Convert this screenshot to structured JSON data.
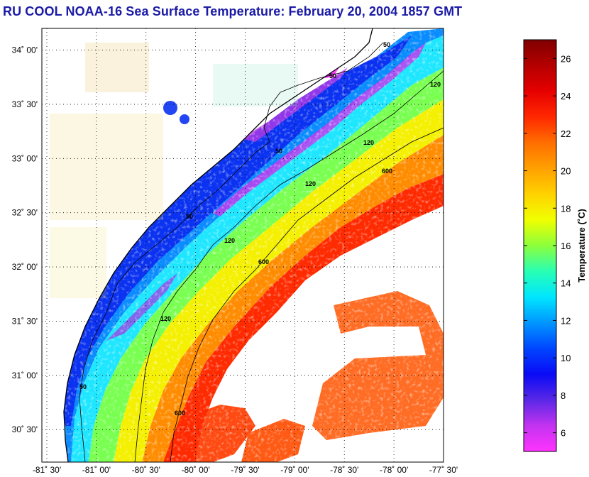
{
  "title": "RU COOL  NOAA-16  Sea Surface Temperature:  February 20, 2004 1857 GMT",
  "map": {
    "lat_range": [
      30.2,
      34.2
    ],
    "lon_range": [
      -81.55,
      -77.5
    ],
    "lat_ticks": [
      {
        "value": 34.0,
        "label": "34˚ 00'"
      },
      {
        "value": 33.5,
        "label": "33˚ 30'"
      },
      {
        "value": 33.0,
        "label": "33˚ 00'"
      },
      {
        "value": 32.5,
        "label": "32˚ 30'"
      },
      {
        "value": 32.0,
        "label": "32˚ 00'"
      },
      {
        "value": 31.5,
        "label": "31˚ 30'"
      },
      {
        "value": 31.0,
        "label": "31˚ 00'"
      },
      {
        "value": 30.5,
        "label": "30˚ 30'"
      }
    ],
    "lon_ticks": [
      {
        "value": -81.5,
        "label": "-81˚ 30'"
      },
      {
        "value": -81.0,
        "label": "-81˚ 00'"
      },
      {
        "value": -80.5,
        "label": "-80˚ 30'"
      },
      {
        "value": -80.0,
        "label": "-80˚ 00'"
      },
      {
        "value": -79.5,
        "label": "-79˚ 30'"
      },
      {
        "value": -79.0,
        "label": "-79˚ 00'"
      },
      {
        "value": -78.5,
        "label": "-78˚ 30'"
      },
      {
        "value": -78.0,
        "label": "-78˚ 00'"
      },
      {
        "value": -77.5,
        "label": "-77˚ 30'"
      }
    ],
    "grid": "dotted",
    "contour_labels": [
      "50",
      "50",
      "50",
      "50",
      "50",
      "120",
      "120",
      "120",
      "120",
      "120",
      "600",
      "600",
      "600"
    ]
  },
  "colorbar": {
    "title": "Temperature (˚C)",
    "range": [
      5,
      27
    ],
    "ticks": [
      6,
      8,
      10,
      12,
      14,
      16,
      18,
      20,
      22,
      24,
      26
    ],
    "tick_labels": [
      "6",
      "8",
      "10",
      "12",
      "14",
      "16",
      "18",
      "20",
      "22",
      "24",
      "26"
    ],
    "colors": [
      "#ff33ff",
      "#c333f0",
      "#5a28e6",
      "#0a0af5",
      "#0046ff",
      "#0096ff",
      "#00e6ff",
      "#28ffb4",
      "#8cff3c",
      "#f0ff00",
      "#ffd200",
      "#ffa000",
      "#ff6e00",
      "#ff2800",
      "#e60000",
      "#b40000",
      "#800000"
    ]
  }
}
